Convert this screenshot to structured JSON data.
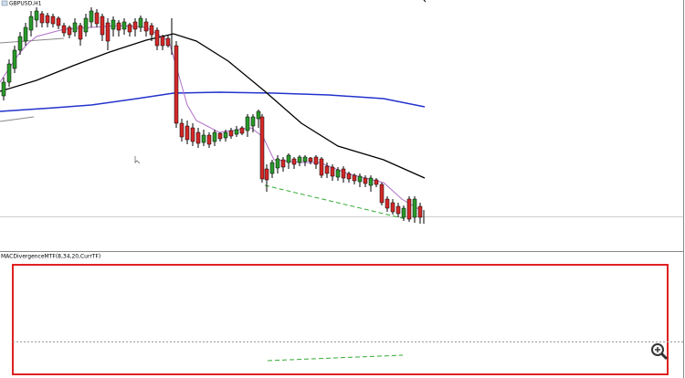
{
  "main_panel": {
    "symbol": "GBPUSD,H1"
  },
  "indicator_panel": {
    "label": "MACDivergenceMTF(8,34,20,CurrTF)"
  }
}
